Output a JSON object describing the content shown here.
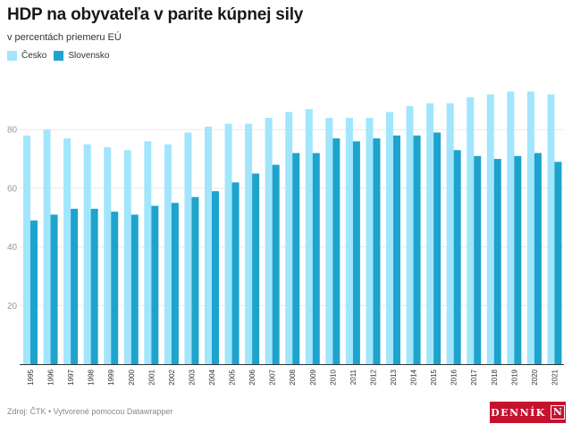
{
  "header": {
    "title": "HDP na obyvateľa v parite kúpnej sily",
    "subtitle": "v percentách priemeru EÚ"
  },
  "footer": {
    "source": "Zdroj: ČTK • Vytvorené pomocou Datawrapper",
    "logo_text": "DENNÍK",
    "logo_mark": "N"
  },
  "colors": {
    "cesko": "#a1e6fc",
    "slovensko": "#1ea3cd",
    "grid": "#e8e8e8",
    "axis": "#333333",
    "brand": "#c4122f"
  },
  "chart_data": {
    "type": "bar",
    "title": "HDP na obyvateľa v parite kúpnej sily",
    "subtitle": "v percentách priemeru EÚ",
    "xlabel": "",
    "ylabel": "",
    "ylim": [
      0,
      95
    ],
    "yticks": [
      20,
      40,
      60,
      80
    ],
    "grid": true,
    "legend_position": "top-left",
    "categories": [
      "1995",
      "1996",
      "1997",
      "1998",
      "1999",
      "2000",
      "2001",
      "2002",
      "2003",
      "2004",
      "2005",
      "2006",
      "2007",
      "2008",
      "2009",
      "2010",
      "2011",
      "2012",
      "2013",
      "2014",
      "2015",
      "2016",
      "2017",
      "2018",
      "2019",
      "2020",
      "2021"
    ],
    "series": [
      {
        "name": "Česko",
        "values": [
          78,
          80,
          77,
          75,
          74,
          73,
          76,
          75,
          79,
          81,
          82,
          82,
          84,
          86,
          87,
          84,
          84,
          84,
          86,
          88,
          89,
          89,
          91,
          92,
          93,
          93,
          92
        ]
      },
      {
        "name": "Slovensko",
        "values": [
          49,
          51,
          53,
          53,
          52,
          51,
          54,
          55,
          57,
          59,
          62,
          65,
          68,
          72,
          72,
          77,
          76,
          77,
          78,
          78,
          79,
          73,
          71,
          70,
          71,
          72,
          69
        ]
      }
    ]
  }
}
